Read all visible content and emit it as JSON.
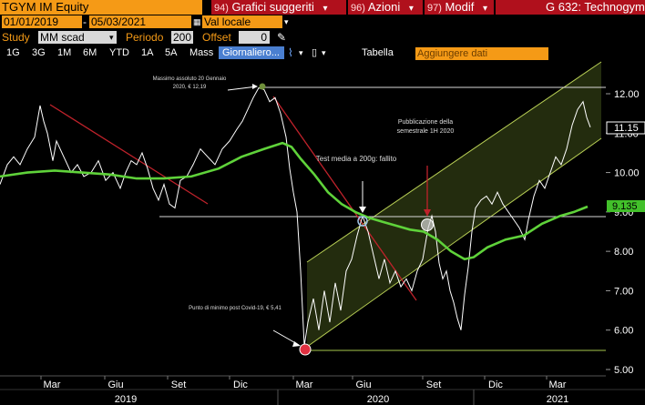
{
  "toolbar": {
    "ticker": "TGYM IM Equity",
    "menu": [
      {
        "num": "94)",
        "label": "Grafici suggeriti"
      },
      {
        "num": "96)",
        "label": "Azioni"
      },
      {
        "num": "97)",
        "label": "Modif"
      }
    ],
    "right_title": "G 632: Technogym",
    "date_from": "01/01/2019",
    "date_to": "05/03/2021",
    "currency": "Val locale",
    "study_label": "Study",
    "study_value": "MM scad",
    "period_label": "Periodo",
    "period_value": "200",
    "offset_label": "Offset",
    "offset_value": "0",
    "periods": [
      "1G",
      "3G",
      "1M",
      "6M",
      "YTD",
      "1A",
      "5A",
      "Mass"
    ],
    "frequency": "Giornaliero",
    "table_label": "Tabella",
    "add_data": "Aggiungere dati"
  },
  "chart_data": {
    "type": "line",
    "ylim": [
      5.0,
      12.6
    ],
    "yticks": [
      "12.00",
      "11.00",
      "10.00",
      "9.00",
      "8.00",
      "7.00",
      "6.00",
      "5.00"
    ],
    "xticks": [
      "Mar",
      "Giu",
      "Set",
      "Dic",
      "Mar",
      "Giu",
      "Set",
      "Dic",
      "Mar"
    ],
    "years": [
      "2019",
      "2020",
      "2021"
    ],
    "last_price": "11.15",
    "ma_value": "9.135",
    "series": [
      {
        "values": [
          [
            0,
            9.7
          ],
          [
            8,
            10.2
          ],
          [
            15,
            10.4
          ],
          [
            22,
            10.2
          ],
          [
            30,
            10.6
          ],
          [
            38,
            10.9
          ],
          [
            44,
            11.7
          ],
          [
            48,
            11.3
          ],
          [
            52,
            11.0
          ],
          [
            58,
            10.3
          ],
          [
            62,
            10.8
          ],
          [
            70,
            10.4
          ],
          [
            78,
            10.0
          ],
          [
            85,
            10.2
          ],
          [
            92,
            9.9
          ],
          [
            100,
            10.0
          ],
          [
            108,
            10.3
          ],
          [
            116,
            9.8
          ],
          [
            124,
            10.0
          ],
          [
            132,
            9.6
          ],
          [
            138,
            10.0
          ],
          [
            144,
            10.3
          ],
          [
            150,
            10.2
          ],
          [
            156,
            10.5
          ],
          [
            162,
            10.1
          ],
          [
            168,
            9.6
          ],
          [
            174,
            9.3
          ],
          [
            180,
            9.7
          ],
          [
            186,
            9.2
          ],
          [
            192,
            9.1
          ],
          [
            198,
            9.8
          ],
          [
            205,
            9.9
          ],
          [
            212,
            10.2
          ],
          [
            220,
            10.6
          ],
          [
            228,
            10.4
          ],
          [
            236,
            10.2
          ],
          [
            244,
            10.6
          ],
          [
            252,
            10.8
          ],
          [
            260,
            11.1
          ],
          [
            266,
            11.3
          ],
          [
            272,
            11.6
          ],
          [
            278,
            11.9
          ],
          [
            284,
            12.15
          ],
          [
            290,
            12.1
          ],
          [
            296,
            11.8
          ],
          [
            302,
            11.9
          ],
          [
            308,
            11.5
          ],
          [
            314,
            10.9
          ],
          [
            318,
            10.1
          ],
          [
            322,
            9.5
          ],
          [
            326,
            9.0
          ],
          [
            330,
            7.5
          ],
          [
            334,
            5.6
          ],
          [
            338,
            6.2
          ],
          [
            344,
            6.8
          ],
          [
            350,
            6.0
          ],
          [
            356,
            7.0
          ],
          [
            362,
            6.2
          ],
          [
            368,
            7.2
          ],
          [
            374,
            6.5
          ],
          [
            380,
            7.5
          ],
          [
            386,
            7.8
          ],
          [
            392,
            8.4
          ],
          [
            398,
            8.9
          ],
          [
            404,
            8.5
          ],
          [
            410,
            7.9
          ],
          [
            416,
            7.3
          ],
          [
            422,
            7.8
          ],
          [
            428,
            7.2
          ],
          [
            434,
            7.5
          ],
          [
            440,
            7.1
          ],
          [
            446,
            7.3
          ],
          [
            452,
            7.0
          ],
          [
            458,
            7.5
          ],
          [
            464,
            7.8
          ],
          [
            470,
            8.6
          ],
          [
            474,
            8.9
          ],
          [
            478,
            8.5
          ],
          [
            482,
            7.7
          ],
          [
            486,
            7.3
          ],
          [
            490,
            7.5
          ],
          [
            494,
            7.0
          ],
          [
            498,
            6.7
          ],
          [
            502,
            6.3
          ],
          [
            506,
            6.0
          ],
          [
            510,
            6.9
          ],
          [
            514,
            7.6
          ],
          [
            518,
            8.5
          ],
          [
            522,
            9.1
          ],
          [
            528,
            9.3
          ],
          [
            534,
            9.4
          ],
          [
            540,
            9.2
          ],
          [
            546,
            9.5
          ],
          [
            552,
            9.2
          ],
          [
            558,
            9.0
          ],
          [
            564,
            8.8
          ],
          [
            570,
            8.6
          ],
          [
            576,
            8.3
          ],
          [
            580,
            8.8
          ],
          [
            586,
            9.4
          ],
          [
            592,
            9.8
          ],
          [
            598,
            9.6
          ],
          [
            604,
            10.0
          ],
          [
            610,
            10.4
          ],
          [
            616,
            10.2
          ],
          [
            622,
            10.6
          ],
          [
            628,
            11.2
          ],
          [
            634,
            11.6
          ],
          [
            640,
            11.8
          ],
          [
            644,
            11.4
          ],
          [
            648,
            11.15
          ]
        ]
      },
      {
        "values": [
          [
            0,
            9.9
          ],
          [
            30,
            10.0
          ],
          [
            60,
            10.05
          ],
          [
            90,
            10.0
          ],
          [
            120,
            9.95
          ],
          [
            150,
            9.85
          ],
          [
            180,
            9.85
          ],
          [
            210,
            9.9
          ],
          [
            240,
            10.1
          ],
          [
            265,
            10.4
          ],
          [
            290,
            10.6
          ],
          [
            310,
            10.75
          ],
          [
            320,
            10.65
          ],
          [
            330,
            10.35
          ],
          [
            345,
            9.95
          ],
          [
            360,
            9.5
          ],
          [
            375,
            9.2
          ],
          [
            390,
            9.0
          ],
          [
            405,
            8.85
          ],
          [
            420,
            8.75
          ],
          [
            435,
            8.65
          ],
          [
            450,
            8.55
          ],
          [
            465,
            8.5
          ],
          [
            480,
            8.3
          ],
          [
            495,
            8.0
          ],
          [
            510,
            7.8
          ],
          [
            520,
            7.85
          ],
          [
            535,
            8.1
          ],
          [
            555,
            8.3
          ],
          [
            575,
            8.4
          ],
          [
            595,
            8.7
          ],
          [
            615,
            8.9
          ],
          [
            630,
            9.0
          ],
          [
            645,
            9.135
          ]
        ]
      }
    ]
  }
}
